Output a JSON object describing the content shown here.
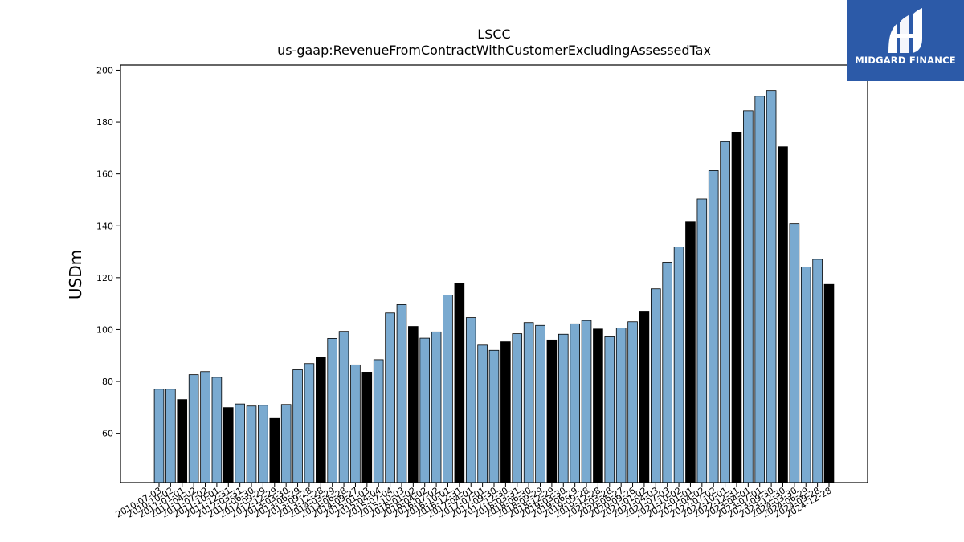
{
  "logo": {
    "text": "MIDGARD FINANCE"
  },
  "chart_data": {
    "type": "bar",
    "title": "LSCC",
    "subtitle": "us-gaap:RevenueFromContractWithCustomerExcludingAssessedTax",
    "ylabel": "USDm",
    "xlabel": "",
    "ylim": [
      41,
      202
    ],
    "yticks": [
      60,
      80,
      100,
      120,
      140,
      160,
      180,
      200
    ],
    "grid": false,
    "colors": {
      "quarter": "#7aaad0",
      "fiscal_year_end": "#000000"
    },
    "categories": [
      "2010-07-03",
      "2010-10-02",
      "2011-01-01",
      "2011-04-02",
      "2011-07-02",
      "2011-10-01",
      "2011-12-31",
      "2012-03-31",
      "2012-06-30",
      "2012-09-29",
      "2012-12-29",
      "2013-03-30",
      "2013-06-29",
      "2013-09-28",
      "2013-12-28",
      "2014-03-29",
      "2014-06-28",
      "2014-09-27",
      "2015-01-03",
      "2015-04-04",
      "2015-07-04",
      "2015-10-03",
      "2016-01-02",
      "2016-04-02",
      "2016-07-02",
      "2016-10-01",
      "2016-12-31",
      "2017-04-01",
      "2017-07-01",
      "2017-09-30",
      "2017-12-30",
      "2018-03-31",
      "2018-06-30",
      "2018-09-29",
      "2018-12-29",
      "2019-03-30",
      "2019-06-29",
      "2019-09-28",
      "2019-12-28",
      "2020-03-28",
      "2020-06-27",
      "2020-09-26",
      "2021-01-02",
      "2021-04-03",
      "2021-07-03",
      "2021-10-02",
      "2022-01-01",
      "2022-04-02",
      "2022-07-02",
      "2022-10-01",
      "2022-12-31",
      "2023-04-01",
      "2023-07-01",
      "2023-09-30",
      "2023-12-30",
      "2024-03-30",
      "2024-06-29",
      "2024-09-28",
      "2024-12-28"
    ],
    "values": [
      77.0,
      77.0,
      73.0,
      82.6,
      83.8,
      81.6,
      69.9,
      71.3,
      70.5,
      70.8,
      66.0,
      71.1,
      84.5,
      86.9,
      89.4,
      96.6,
      99.3,
      86.4,
      83.6,
      88.4,
      106.4,
      109.6,
      101.2,
      96.7,
      99.1,
      113.3,
      117.9,
      104.6,
      94.0,
      92.0,
      95.3,
      98.4,
      102.7,
      101.6,
      96.0,
      98.2,
      102.2,
      103.5,
      100.2,
      97.2,
      100.6,
      103.0,
      107.1,
      115.7,
      126.0,
      131.9,
      141.7,
      150.3,
      161.3,
      172.5,
      176.0,
      184.4,
      190.0,
      192.2,
      170.5,
      140.8,
      124.1,
      127.1,
      117.4
    ],
    "fiscal_year_end": [
      2,
      6,
      10,
      14,
      18,
      22,
      26,
      30,
      34,
      38,
      42,
      46,
      50,
      54,
      58
    ]
  }
}
